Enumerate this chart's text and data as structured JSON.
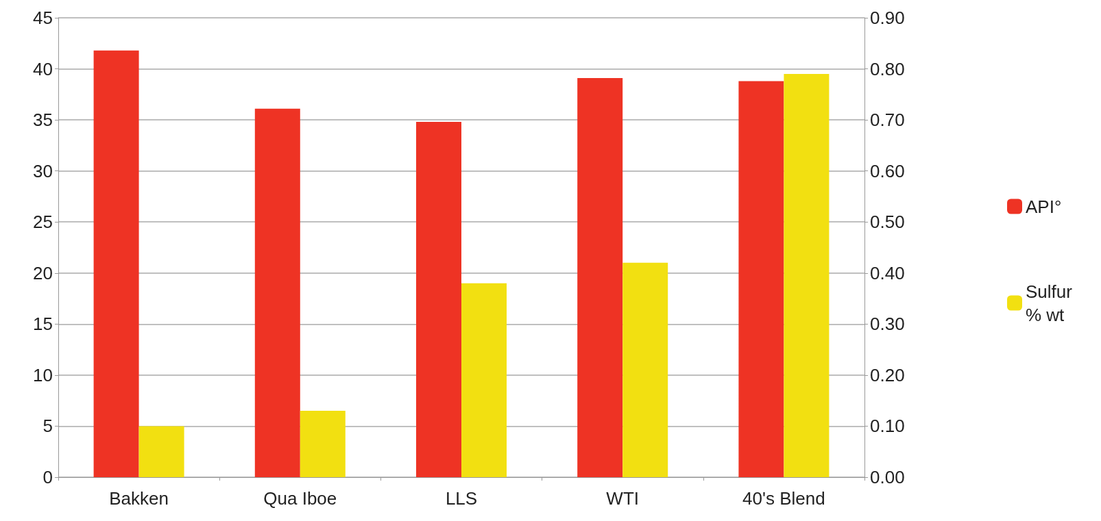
{
  "chart_data": {
    "type": "bar",
    "categories": [
      "Bakken",
      "Qua Iboe",
      "LLS",
      "WTI",
      "40's Blend"
    ],
    "series": [
      {
        "name": "API°",
        "color": "#ee3324",
        "values": [
          41.8,
          36.1,
          34.8,
          39.1,
          38.8
        ]
      },
      {
        "name": "Sulfur % wt",
        "color": "#f2e011",
        "axis": "y2",
        "values": [
          0.1,
          0.13,
          0.38,
          0.42,
          0.79
        ]
      }
    ],
    "ylim": [
      0,
      45
    ],
    "yticks": [
      0,
      5,
      10,
      15,
      20,
      25,
      30,
      35,
      40,
      45
    ],
    "y2lim": [
      0,
      0.9
    ],
    "y2ticks": [
      {
        "value": 0,
        "label": "0.00"
      },
      {
        "value": 0.1,
        "label": "0.10"
      },
      {
        "value": 0.2,
        "label": "0.20"
      },
      {
        "value": 0.3,
        "label": "0.30"
      },
      {
        "value": 0.4,
        "label": "0.40"
      },
      {
        "value": 0.5,
        "label": "0.50"
      },
      {
        "value": 0.6,
        "label": "0.60"
      },
      {
        "value": 0.7,
        "label": "0.70"
      },
      {
        "value": 0.8,
        "label": "0.80"
      },
      {
        "value": 0.9,
        "label": "0.90"
      }
    ],
    "grid": "y",
    "legend": "right"
  }
}
